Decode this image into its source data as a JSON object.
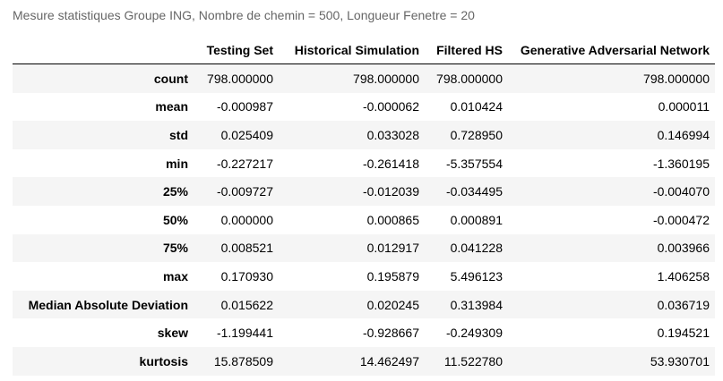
{
  "caption": "Mesure statistiques Groupe ING, Nombre de chemin = 500, Longueur Fenetre = 20",
  "table": {
    "columns": [
      "",
      "Testing Set",
      "Historical Simulation",
      "Filtered HS",
      "Generative Adversarial Network"
    ],
    "rows": [
      {
        "label": "count",
        "values": [
          "798.000000",
          "798.000000",
          "798.000000",
          "798.000000"
        ]
      },
      {
        "label": "mean",
        "values": [
          "-0.000987",
          "-0.000062",
          "0.010424",
          "0.000011"
        ]
      },
      {
        "label": "std",
        "values": [
          "0.025409",
          "0.033028",
          "0.728950",
          "0.146994"
        ]
      },
      {
        "label": "min",
        "values": [
          "-0.227217",
          "-0.261418",
          "-5.357554",
          "-1.360195"
        ]
      },
      {
        "label": "25%",
        "values": [
          "-0.009727",
          "-0.012039",
          "-0.034495",
          "-0.004070"
        ]
      },
      {
        "label": "50%",
        "values": [
          "0.000000",
          "0.000865",
          "0.000891",
          "-0.000472"
        ]
      },
      {
        "label": "75%",
        "values": [
          "0.008521",
          "0.012917",
          "0.041228",
          "0.003966"
        ]
      },
      {
        "label": "max",
        "values": [
          "0.170930",
          "0.195879",
          "5.496123",
          "1.406258"
        ]
      },
      {
        "label": "Median Absolute Deviation",
        "values": [
          "0.015622",
          "0.020245",
          "0.313984",
          "0.036719"
        ]
      },
      {
        "label": "skew",
        "values": [
          "-1.199441",
          "-0.928667",
          "-0.249309",
          "0.194521"
        ]
      },
      {
        "label": "kurtosis",
        "values": [
          "15.878509",
          "14.462497",
          "11.522780",
          "53.930701"
        ]
      }
    ]
  }
}
